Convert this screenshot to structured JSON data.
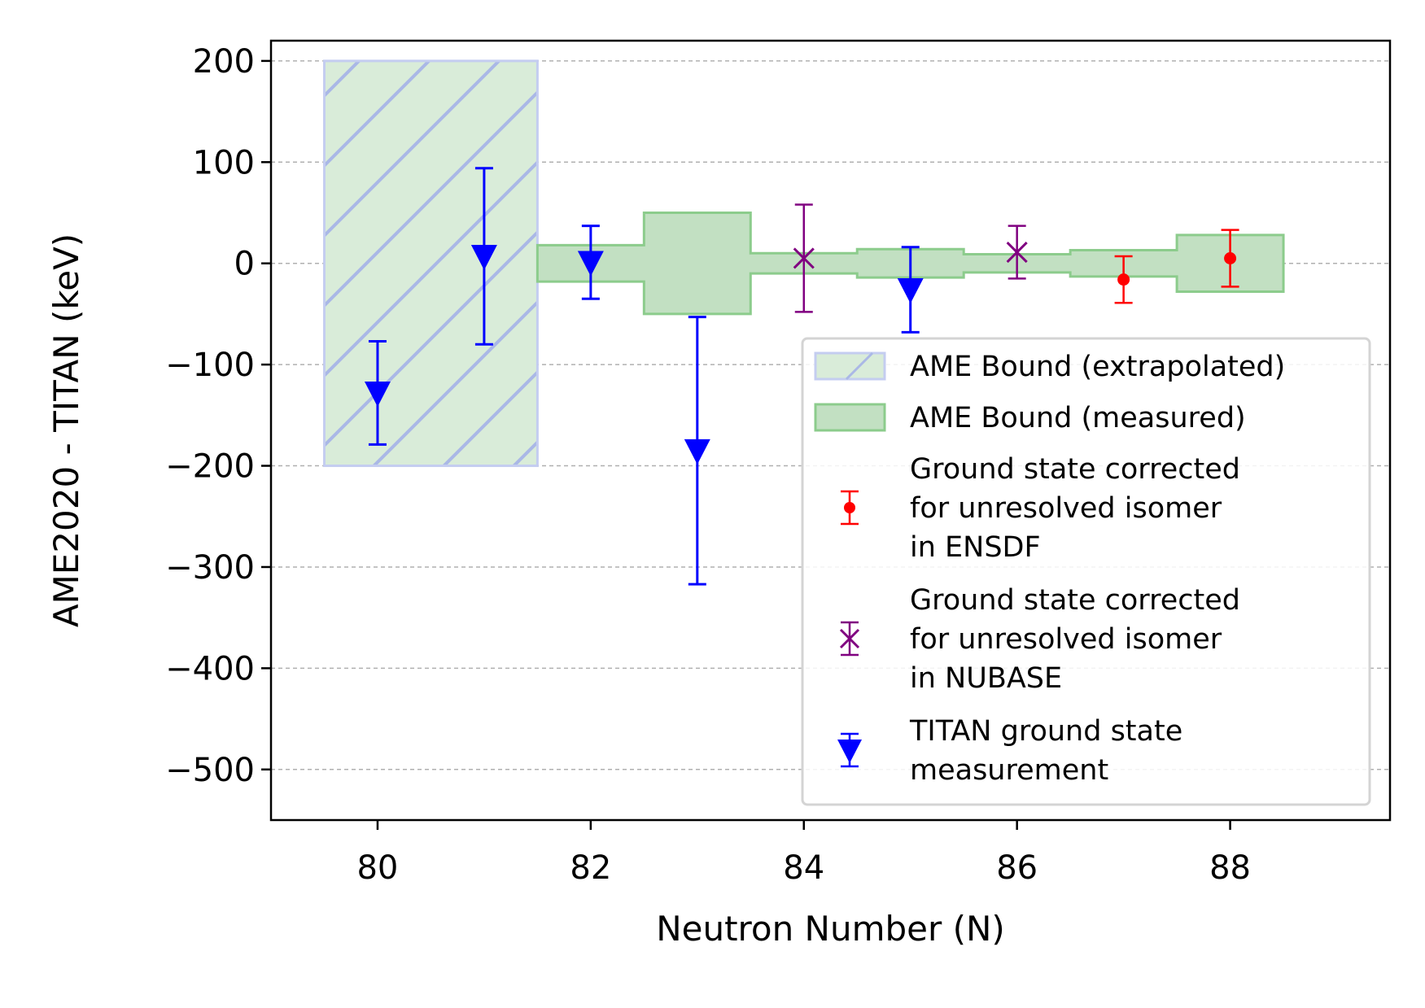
{
  "chart_data": {
    "type": "errorbar",
    "xlabel": "Neutron Number (N)",
    "ylabel": "AME2020 - TITAN (keV)",
    "xlim": [
      79.0,
      89.5
    ],
    "ylim": [
      -550,
      220
    ],
    "xticks": [
      80,
      82,
      84,
      86,
      88
    ],
    "yticks": [
      200,
      100,
      0,
      -100,
      -200,
      -300,
      -400,
      -500
    ],
    "ytick_labels": [
      "200",
      "100",
      "0",
      "−100",
      "−200",
      "−300",
      "−400",
      "−500"
    ],
    "grid": "horizontal dashed",
    "legend_position": "lower-right",
    "colors": {
      "extrapolated_fill": "#d9ecd9",
      "extrapolated_hatch": "#aab8e6",
      "measured_fill": "#c2e0c2",
      "measured_edge": "#8ccc8c",
      "ensdf": "#ff0000",
      "nubase": "#800080",
      "titan": "#0000ff",
      "grid": "#b0b0b0"
    },
    "series": [
      {
        "name": "AME Bound (extrapolated)",
        "kind": "band",
        "points": [
          {
            "x": 80,
            "halfwidth": 200
          },
          {
            "x": 81,
            "halfwidth": 200
          }
        ]
      },
      {
        "name": "AME Bound (measured)",
        "kind": "band",
        "points": [
          {
            "x": 82,
            "halfwidth": 18
          },
          {
            "x": 83,
            "halfwidth": 50
          },
          {
            "x": 84,
            "halfwidth": 10
          },
          {
            "x": 85,
            "halfwidth": 14
          },
          {
            "x": 86,
            "halfwidth": 9
          },
          {
            "x": 87,
            "halfwidth": 13
          },
          {
            "x": 88,
            "halfwidth": 28
          }
        ]
      },
      {
        "name": "Ground state corrected for unresolved isomer in ENSDF",
        "kind": "points",
        "marker": "dot",
        "points": [
          {
            "x": 87,
            "y": -16,
            "err": 23
          },
          {
            "x": 88,
            "y": 5,
            "err": 28
          }
        ]
      },
      {
        "name": "Ground state corrected for unresolved isomer in NUBASE",
        "kind": "points",
        "marker": "x",
        "points": [
          {
            "x": 84,
            "y": 5,
            "err": 53
          },
          {
            "x": 86,
            "y": 11,
            "err": 26
          }
        ]
      },
      {
        "name": "TITAN ground state measurement",
        "kind": "points",
        "marker": "triangle-down",
        "points": [
          {
            "x": 80,
            "y": -128,
            "err": 51
          },
          {
            "x": 81,
            "y": 7,
            "err": 87
          },
          {
            "x": 82,
            "y": 1,
            "err": 36
          },
          {
            "x": 83,
            "y": -185,
            "err": 132
          },
          {
            "x": 85,
            "y": -26,
            "err": 42
          }
        ]
      }
    ],
    "legend": [
      {
        "kind": "extrap",
        "lines": [
          "AME Bound (extrapolated)"
        ]
      },
      {
        "kind": "measured",
        "lines": [
          "AME Bound (measured)"
        ]
      },
      {
        "kind": "ensdf",
        "lines": [
          "Ground state corrected",
          "for unresolved isomer",
          "in ENSDF"
        ]
      },
      {
        "kind": "nubase",
        "lines": [
          "Ground state corrected",
          "for unresolved isomer",
          "in NUBASE"
        ]
      },
      {
        "kind": "titan",
        "lines": [
          "TITAN ground state",
          "measurement"
        ]
      }
    ]
  }
}
